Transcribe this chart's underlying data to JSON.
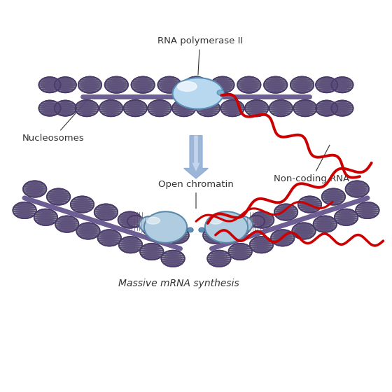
{
  "bg_color": "#ffffff",
  "nuc_fill": "#a8c8a0",
  "nuc_edge": "#4a3a6a",
  "nuc_stripe": "#5a4a7a",
  "pol_fill": "#b8d8f0",
  "pol_edge": "#5a90b8",
  "pol_fill2": "#cce4f5",
  "rna_color": "#cc0000",
  "open_fill": "#b0cce0",
  "open_edge": "#5a90b8",
  "yellow_fill": "#f0e890",
  "yellow_edge": "#4a3a6a",
  "arrow_outer": "#8aaad0",
  "arrow_inner": "#d0e0f5",
  "text_color": "#404040",
  "label_color": "#333333",
  "fs_label": 9.5,
  "title_top": "RNA polymerase II",
  "label_nucleosomes": "Nucleosomes",
  "label_ncrna": "Non-coding RNA",
  "label_open": "Open chromatin",
  "label_bottom": "Massive mRNA synthesis"
}
